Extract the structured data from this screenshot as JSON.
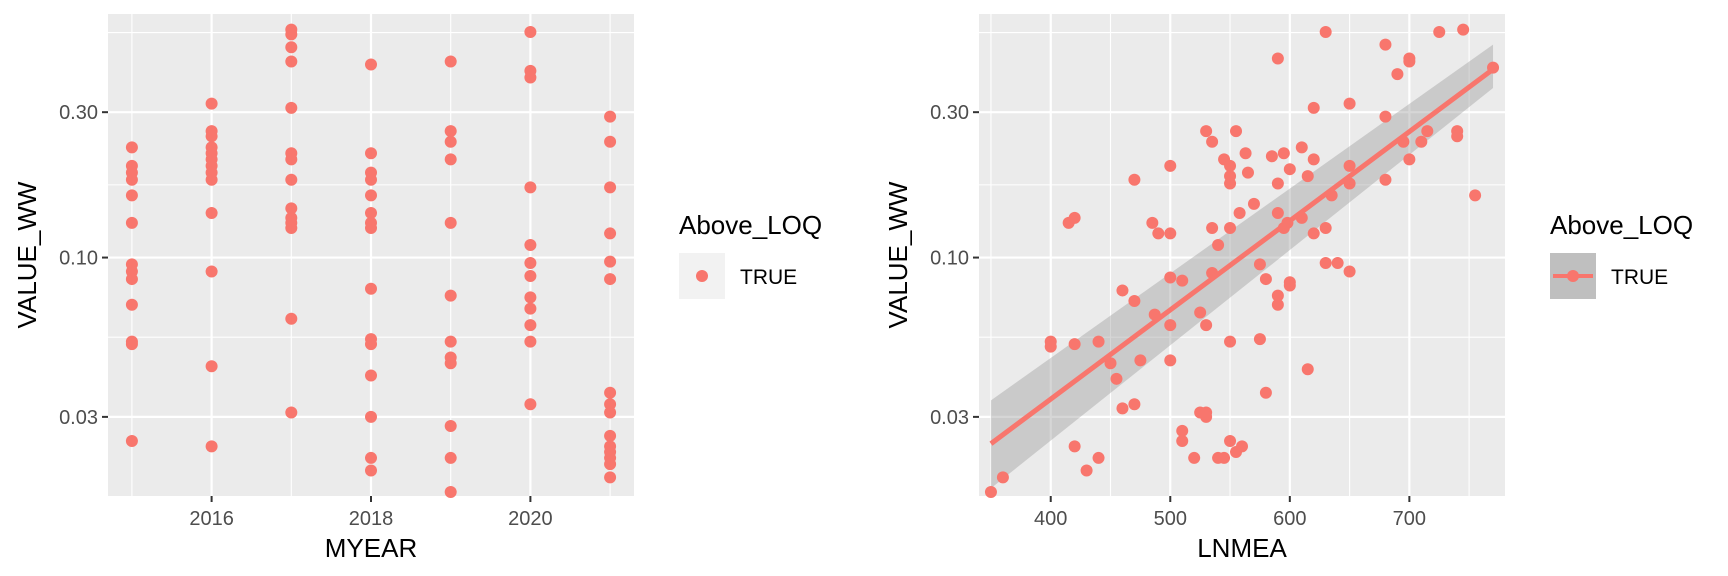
{
  "chart_data": [
    {
      "type": "scatter",
      "xlabel": "MYEAR",
      "ylabel": "VALUE_WW",
      "y_scale": "log10",
      "xlim": [
        2014.7,
        2021.3
      ],
      "ylim": [
        0.0165,
        0.63
      ],
      "x_ticks": [
        2016,
        2018,
        2020
      ],
      "x_tick_labels": [
        "2016",
        "2018",
        "2020"
      ],
      "y_ticks": [
        0.03,
        0.1,
        0.3
      ],
      "y_tick_labels": [
        "0.03",
        "0.10",
        "0.30"
      ],
      "legend": {
        "title": "Above_LOQ",
        "entries": [
          "TRUE"
        ],
        "position": "right"
      },
      "color": "#F8766D",
      "series": [
        {
          "name": "TRUE",
          "points": [
            [
              2015,
              0.23
            ],
            [
              2015,
              0.2
            ],
            [
              2015,
              0.19
            ],
            [
              2015,
              0.18
            ],
            [
              2015,
              0.16
            ],
            [
              2015,
              0.13
            ],
            [
              2015,
              0.095
            ],
            [
              2015,
              0.09
            ],
            [
              2015,
              0.085
            ],
            [
              2015,
              0.07
            ],
            [
              2015,
              0.053
            ],
            [
              2015,
              0.052
            ],
            [
              2015,
              0.025
            ],
            [
              2016,
              0.32
            ],
            [
              2016,
              0.26
            ],
            [
              2016,
              0.25
            ],
            [
              2016,
              0.23
            ],
            [
              2016,
              0.22
            ],
            [
              2016,
              0.21
            ],
            [
              2016,
              0.2
            ],
            [
              2016,
              0.19
            ],
            [
              2016,
              0.18
            ],
            [
              2016,
              0.14
            ],
            [
              2016,
              0.09
            ],
            [
              2016,
              0.044
            ],
            [
              2016,
              0.024
            ],
            [
              2017,
              0.56
            ],
            [
              2017,
              0.54
            ],
            [
              2017,
              0.49
            ],
            [
              2017,
              0.44
            ],
            [
              2017,
              0.31
            ],
            [
              2017,
              0.22
            ],
            [
              2017,
              0.21
            ],
            [
              2017,
              0.18
            ],
            [
              2017,
              0.145
            ],
            [
              2017,
              0.135
            ],
            [
              2017,
              0.13
            ],
            [
              2017,
              0.125
            ],
            [
              2017,
              0.063
            ],
            [
              2017,
              0.031
            ],
            [
              2018,
              0.43
            ],
            [
              2018,
              0.22
            ],
            [
              2018,
              0.19
            ],
            [
              2018,
              0.18
            ],
            [
              2018,
              0.16
            ],
            [
              2018,
              0.14
            ],
            [
              2018,
              0.13
            ],
            [
              2018,
              0.125
            ],
            [
              2018,
              0.079
            ],
            [
              2018,
              0.054
            ],
            [
              2018,
              0.052
            ],
            [
              2018,
              0.041
            ],
            [
              2018,
              0.03
            ],
            [
              2018,
              0.022
            ],
            [
              2018,
              0.02
            ],
            [
              2019,
              0.44
            ],
            [
              2019,
              0.26
            ],
            [
              2019,
              0.24
            ],
            [
              2019,
              0.21
            ],
            [
              2019,
              0.13
            ],
            [
              2019,
              0.075
            ],
            [
              2019,
              0.053
            ],
            [
              2019,
              0.047
            ],
            [
              2019,
              0.045
            ],
            [
              2019,
              0.028
            ],
            [
              2019,
              0.022
            ],
            [
              2019,
              0.017
            ],
            [
              2020,
              0.55
            ],
            [
              2020,
              0.41
            ],
            [
              2020,
              0.39
            ],
            [
              2020,
              0.17
            ],
            [
              2020,
              0.11
            ],
            [
              2020,
              0.096
            ],
            [
              2020,
              0.087
            ],
            [
              2020,
              0.074
            ],
            [
              2020,
              0.068
            ],
            [
              2020,
              0.06
            ],
            [
              2020,
              0.053
            ],
            [
              2020,
              0.033
            ],
            [
              2021,
              0.29
            ],
            [
              2021,
              0.24
            ],
            [
              2021,
              0.17
            ],
            [
              2021,
              0.12
            ],
            [
              2021,
              0.097
            ],
            [
              2021,
              0.085
            ],
            [
              2021,
              0.036
            ],
            [
              2021,
              0.033
            ],
            [
              2021,
              0.031
            ],
            [
              2021,
              0.026
            ],
            [
              2021,
              0.024
            ],
            [
              2021,
              0.023
            ],
            [
              2021,
              0.022
            ],
            [
              2021,
              0.021
            ],
            [
              2021,
              0.019
            ]
          ]
        }
      ]
    },
    {
      "type": "scatter",
      "xlabel": "LNMEA",
      "ylabel": "VALUE_WW",
      "y_scale": "log10",
      "xlim": [
        340,
        780
      ],
      "ylim": [
        0.0165,
        0.63
      ],
      "x_ticks": [
        400,
        500,
        600,
        700
      ],
      "x_tick_labels": [
        "400",
        "500",
        "600",
        "700"
      ],
      "y_ticks": [
        0.03,
        0.1,
        0.3
      ],
      "y_tick_labels": [
        "0.03",
        "0.10",
        "0.30"
      ],
      "legend": {
        "title": "Above_LOQ",
        "entries": [
          "TRUE"
        ],
        "position": "right"
      },
      "color": "#F8766D",
      "smooth": {
        "method": "lm",
        "x": [
          350,
          770
        ],
        "fit": [
          0.0245,
          0.415
        ],
        "lower": [
          0.0175,
          0.36
        ],
        "upper": [
          0.034,
          0.5
        ]
      },
      "series": [
        {
          "name": "TRUE",
          "points": [
            [
              350,
              0.017
            ],
            [
              360,
              0.019
            ],
            [
              400,
              0.053
            ],
            [
              400,
              0.051
            ],
            [
              415,
              0.13
            ],
            [
              420,
              0.135
            ],
            [
              420,
              0.052
            ],
            [
              420,
              0.024
            ],
            [
              430,
              0.02
            ],
            [
              440,
              0.022
            ],
            [
              440,
              0.053
            ],
            [
              450,
              0.045
            ],
            [
              455,
              0.04
            ],
            [
              460,
              0.078
            ],
            [
              460,
              0.032
            ],
            [
              470,
              0.072
            ],
            [
              470,
              0.033
            ],
            [
              470,
              0.18
            ],
            [
              475,
              0.046
            ],
            [
              485,
              0.13
            ],
            [
              487,
              0.065
            ],
            [
              490,
              0.12
            ],
            [
              500,
              0.2
            ],
            [
              500,
              0.12
            ],
            [
              500,
              0.086
            ],
            [
              500,
              0.06
            ],
            [
              500,
              0.046
            ],
            [
              510,
              0.084
            ],
            [
              510,
              0.027
            ],
            [
              510,
              0.025
            ],
            [
              520,
              0.022
            ],
            [
              525,
              0.066
            ],
            [
              525,
              0.031
            ],
            [
              530,
              0.26
            ],
            [
              530,
              0.06
            ],
            [
              530,
              0.031
            ],
            [
              530,
              0.03
            ],
            [
              535,
              0.24
            ],
            [
              535,
              0.125
            ],
            [
              535,
              0.089
            ],
            [
              540,
              0.11
            ],
            [
              540,
              0.022
            ],
            [
              545,
              0.21
            ],
            [
              545,
              0.022
            ],
            [
              550,
              0.2
            ],
            [
              550,
              0.185
            ],
            [
              550,
              0.175
            ],
            [
              550,
              0.125
            ],
            [
              550,
              0.053
            ],
            [
              550,
              0.025
            ],
            [
              555,
              0.26
            ],
            [
              555,
              0.023
            ],
            [
              558,
              0.14
            ],
            [
              560,
              0.024
            ],
            [
              563,
              0.22
            ],
            [
              565,
              0.19
            ],
            [
              570,
              0.15
            ],
            [
              575,
              0.095
            ],
            [
              575,
              0.054
            ],
            [
              580,
              0.085
            ],
            [
              580,
              0.036
            ],
            [
              585,
              0.215
            ],
            [
              590,
              0.45
            ],
            [
              590,
              0.175
            ],
            [
              590,
              0.14
            ],
            [
              590,
              0.075
            ],
            [
              590,
              0.07
            ],
            [
              595,
              0.22
            ],
            [
              595,
              0.125
            ],
            [
              598,
              0.13
            ],
            [
              600,
              0.195
            ],
            [
              600,
              0.083
            ],
            [
              600,
              0.081
            ],
            [
              610,
              0.23
            ],
            [
              610,
              0.135
            ],
            [
              615,
              0.185
            ],
            [
              615,
              0.043
            ],
            [
              620,
              0.31
            ],
            [
              620,
              0.21
            ],
            [
              620,
              0.12
            ],
            [
              630,
              0.55
            ],
            [
              630,
              0.125
            ],
            [
              630,
              0.096
            ],
            [
              635,
              0.16
            ],
            [
              640,
              0.096
            ],
            [
              650,
              0.32
            ],
            [
              650,
              0.2
            ],
            [
              650,
              0.175
            ],
            [
              650,
              0.09
            ],
            [
              680,
              0.5
            ],
            [
              680,
              0.29
            ],
            [
              680,
              0.18
            ],
            [
              690,
              0.4
            ],
            [
              695,
              0.24
            ],
            [
              700,
              0.45
            ],
            [
              700,
              0.44
            ],
            [
              700,
              0.21
            ],
            [
              710,
              0.24
            ],
            [
              715,
              0.26
            ],
            [
              725,
              0.55
            ],
            [
              740,
              0.26
            ],
            [
              740,
              0.25
            ],
            [
              745,
              0.56
            ],
            [
              755,
              0.16
            ],
            [
              770,
              0.42
            ]
          ]
        }
      ]
    }
  ]
}
